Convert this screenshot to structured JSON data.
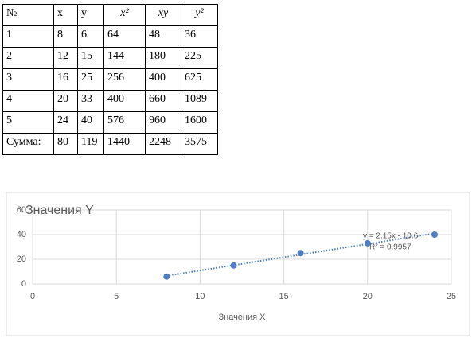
{
  "table": {
    "header": [
      "№",
      "x",
      "y",
      "x²",
      "xy",
      "y²"
    ],
    "rows": [
      [
        1,
        8,
        6,
        64,
        48,
        36
      ],
      [
        2,
        12,
        15,
        144,
        180,
        225
      ],
      [
        3,
        16,
        25,
        256,
        400,
        625
      ],
      [
        4,
        20,
        33,
        400,
        660,
        1089
      ],
      [
        5,
        24,
        40,
        576,
        960,
        1600
      ],
      [
        "Сумма:",
        80,
        119,
        1440,
        2248,
        3575
      ]
    ]
  },
  "chart_data": {
    "type": "scatter",
    "title": "Значения Y",
    "x_label": "Значения X",
    "x": [
      8,
      12,
      16,
      20,
      24
    ],
    "values": [
      6,
      15,
      25,
      33,
      40
    ],
    "color": "#4f7fc1",
    "xlim": [
      0,
      25
    ],
    "xticks": [
      0,
      5,
      10,
      15,
      20,
      25
    ],
    "ylim": [
      0,
      60
    ],
    "yticks": [
      0,
      20,
      40,
      60
    ],
    "grid": true,
    "trendline": "linear",
    "annotations": [
      "y = 2.15x - 10.6",
      "R² = 0.9957"
    ]
  }
}
